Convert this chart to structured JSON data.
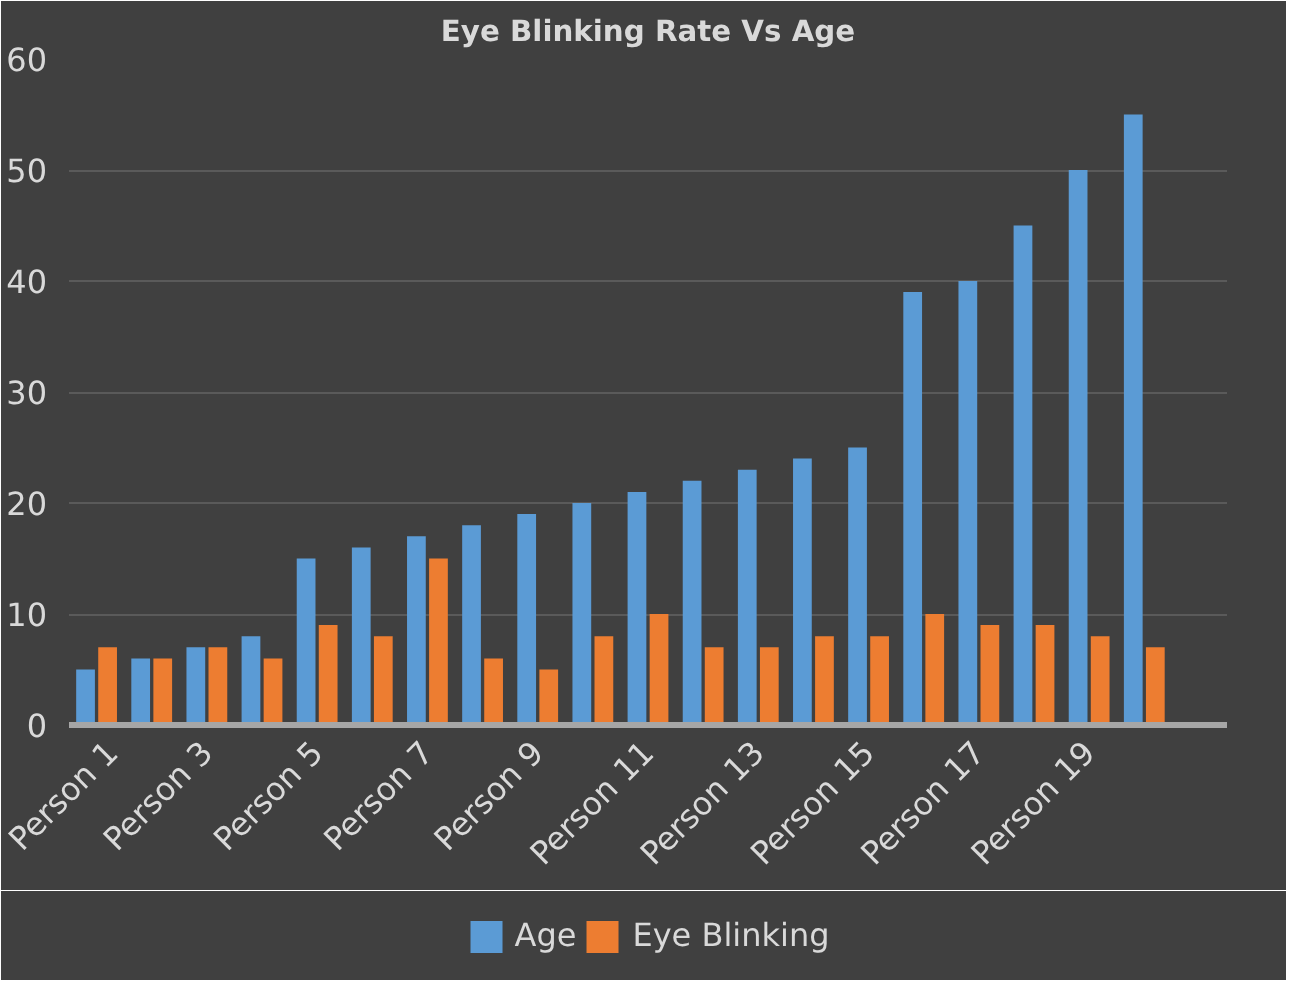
{
  "chart_data": {
    "type": "bar",
    "title": "Eye Blinking Rate Vs Age",
    "categories": [
      "Person 1",
      null,
      "Person 3",
      null,
      "Person 5",
      null,
      "Person 7",
      null,
      "Person 9",
      null,
      "Person 11",
      null,
      "Person 13",
      null,
      "Person 15",
      null,
      "Person 17",
      null,
      "Person 19",
      null,
      null
    ],
    "series": [
      {
        "name": "Age",
        "color": "#5b9bd5",
        "values": [
          5,
          6,
          7,
          8,
          15,
          16,
          17,
          18,
          19,
          20,
          21,
          22,
          23,
          24,
          25,
          39,
          40,
          45,
          50,
          55,
          null
        ]
      },
      {
        "name": "Eye Blinking",
        "color": "#ed7d31",
        "values": [
          7,
          6,
          7,
          6,
          9,
          8,
          15,
          6,
          5,
          8,
          10,
          7,
          7,
          8,
          8,
          10,
          9,
          9,
          8,
          7,
          null
        ]
      }
    ],
    "ylim": [
      0,
      60
    ],
    "yticks": [
      0,
      10,
      20,
      30,
      40,
      50,
      60
    ],
    "grid": "y",
    "legend": "bottom"
  }
}
